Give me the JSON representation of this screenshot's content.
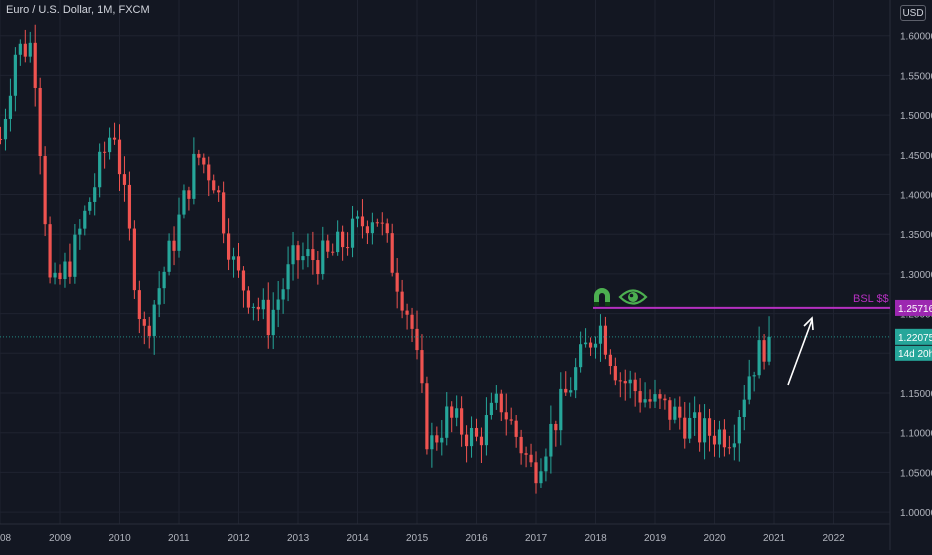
{
  "header": {
    "symbol_title": "Euro / U.S. Dollar, 1M, FXCM",
    "currency": "USD"
  },
  "colors": {
    "background": "#131722",
    "up": "#26a69a",
    "down": "#ef5350",
    "grid": "#1f2330",
    "level_line": "#b530c0",
    "level_label_bg": "#9c27b0",
    "current_price_bg": "#26a69a",
    "icon_green": "#4caf50",
    "axis_text": "#b2b5be",
    "arrow": "#ffffff"
  },
  "annotations": {
    "level_label": "BSL $$",
    "icons": [
      "magnet-icon",
      "eye-icon"
    ],
    "arrow": "up-right-arrow"
  },
  "chart_data": {
    "type": "candlestick",
    "title": "Euro / U.S. Dollar, 1M, FXCM",
    "x_labels": [
      "08",
      "2009",
      "2010",
      "2011",
      "2012",
      "2013",
      "2014",
      "2015",
      "2016",
      "2017",
      "2018",
      "2019",
      "2020",
      "2021",
      "2022"
    ],
    "y_ticks": [
      "1.60000",
      "1.55000",
      "1.50000",
      "1.45000",
      "1.40000",
      "1.35000",
      "1.30000",
      "1.25000",
      "1.20000",
      "1.15000",
      "1.10000",
      "1.05000",
      "1.00000"
    ],
    "ylim": [
      0.985,
      1.645
    ],
    "level": {
      "value": 1.25716,
      "label": "1.25716"
    },
    "current_price": {
      "value": 1.22075,
      "label": "1.22075",
      "countdown": "14d 20h"
    },
    "grid": true,
    "ohlc_waypoints": [
      [
        2008.0,
        1.47
      ],
      [
        2008.25,
        1.58
      ],
      [
        2008.55,
        1.59
      ],
      [
        2008.85,
        1.27
      ],
      [
        2009.2,
        1.32
      ],
      [
        2009.9,
        1.49
      ],
      [
        2010.4,
        1.22
      ],
      [
        2010.9,
        1.34
      ],
      [
        2011.3,
        1.45
      ],
      [
        2011.6,
        1.42
      ],
      [
        2011.95,
        1.3
      ],
      [
        2012.5,
        1.24
      ],
      [
        2012.95,
        1.32
      ],
      [
        2013.5,
        1.32
      ],
      [
        2014.3,
        1.38
      ],
      [
        2014.9,
        1.24
      ],
      [
        2015.2,
        1.08
      ],
      [
        2015.5,
        1.12
      ],
      [
        2016.0,
        1.09
      ],
      [
        2016.4,
        1.14
      ],
      [
        2016.95,
        1.05
      ],
      [
        2017.4,
        1.13
      ],
      [
        2017.8,
        1.2
      ],
      [
        2018.05,
        1.24
      ],
      [
        2018.4,
        1.17
      ],
      [
        2018.9,
        1.14
      ],
      [
        2019.4,
        1.12
      ],
      [
        2019.75,
        1.1
      ],
      [
        2020.3,
        1.1
      ],
      [
        2020.6,
        1.18
      ],
      [
        2020.9,
        1.22
      ]
    ]
  }
}
